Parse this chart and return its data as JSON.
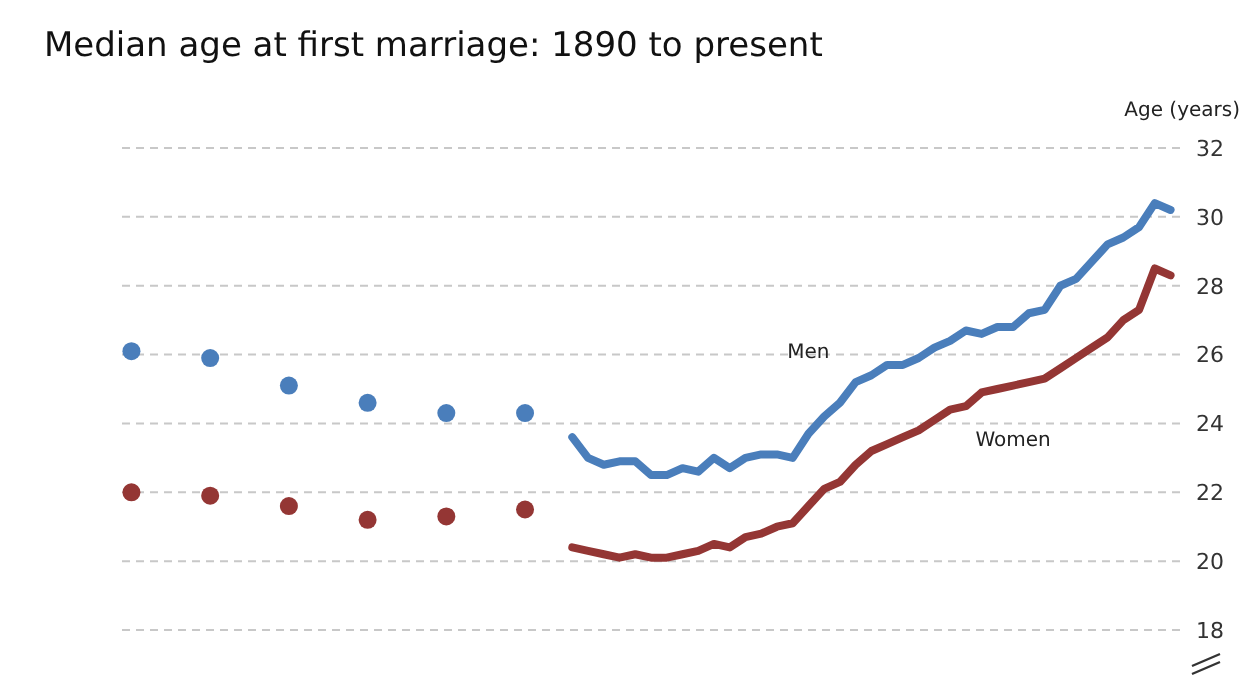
{
  "chart_data": {
    "type": "line",
    "title": "Median age at first marriage: 1890 to present",
    "ylabel": "Age (years)",
    "categories": [
      null,
      null,
      null,
      null,
      null,
      null,
      null,
      null,
      null,
      null,
      null,
      null,
      null,
      null,
      null,
      null,
      null,
      null,
      null,
      null,
      null,
      null,
      null,
      null,
      null,
      null,
      null,
      null,
      null,
      null,
      null,
      null,
      null,
      null,
      null,
      null,
      null,
      null,
      null,
      null,
      null,
      null,
      null,
      null,
      null,
      null,
      null,
      null,
      null,
      null,
      null,
      null,
      null,
      null,
      null,
      null,
      null,
      null,
      null,
      null,
      null,
      null,
      null,
      null,
      null,
      null,
      null
    ],
    "ylim": [
      18,
      32
    ],
    "yticks": [
      18,
      20,
      22,
      24,
      26,
      28,
      30,
      32
    ],
    "grid": "y",
    "line_style": "solid",
    "series": [
      {
        "type": "scatter",
        "color": "#4a7ebb",
        "values": [
          26.1,
          null,
          null,
          null,
          null,
          25.9,
          null,
          null,
          null,
          null,
          25.1,
          null,
          null,
          null,
          null,
          24.6,
          null,
          null,
          null,
          null,
          24.3,
          null,
          null,
          null,
          null,
          24.3,
          null,
          null,
          null,
          null,
          null,
          null,
          null,
          null,
          null,
          null,
          null,
          null,
          null,
          null,
          null,
          null,
          null,
          null,
          null,
          null,
          null,
          null,
          null,
          null,
          null,
          null,
          null,
          null,
          null,
          null,
          null,
          null,
          null,
          null,
          null,
          null,
          null,
          null,
          null,
          null,
          null
        ]
      },
      {
        "name": "Men",
        "color": "#4a7ebb",
        "values": [
          null,
          null,
          null,
          null,
          null,
          null,
          null,
          null,
          null,
          null,
          null,
          null,
          null,
          null,
          null,
          null,
          null,
          null,
          null,
          null,
          null,
          null,
          null,
          null,
          null,
          null,
          null,
          null,
          23.6,
          23.0,
          22.8,
          22.9,
          22.9,
          22.5,
          22.5,
          22.7,
          22.6,
          23.0,
          22.7,
          23.0,
          23.1,
          23.1,
          23.0,
          23.7,
          24.2,
          24.6,
          25.2,
          25.4,
          25.7,
          25.7,
          25.9,
          26.2,
          26.4,
          26.7,
          26.6,
          26.8,
          26.8,
          27.2,
          27.3,
          28.0,
          28.2,
          28.7,
          29.2,
          29.4,
          29.7,
          30.4,
          30.2
        ]
      },
      {
        "type": "scatter",
        "color": "#943634",
        "values": [
          22.0,
          null,
          null,
          null,
          null,
          21.9,
          null,
          null,
          null,
          null,
          21.6,
          null,
          null,
          null,
          null,
          21.2,
          null,
          null,
          null,
          null,
          21.3,
          null,
          null,
          null,
          null,
          21.5,
          null,
          null,
          null,
          null,
          null,
          null,
          null,
          null,
          null,
          null,
          null,
          null,
          null,
          null,
          null,
          null,
          null,
          null,
          null,
          null,
          null,
          null,
          null,
          null,
          null,
          null,
          null,
          null,
          null,
          null,
          null,
          null,
          null,
          null,
          null,
          null,
          null,
          null,
          null,
          null,
          null
        ]
      },
      {
        "name": "Women",
        "color": "#943634",
        "values": [
          null,
          null,
          null,
          null,
          null,
          null,
          null,
          null,
          null,
          null,
          null,
          null,
          null,
          null,
          null,
          null,
          null,
          null,
          null,
          null,
          null,
          null,
          null,
          null,
          null,
          null,
          null,
          null,
          20.4,
          20.3,
          20.2,
          20.1,
          20.2,
          20.1,
          20.1,
          20.2,
          20.3,
          20.5,
          20.4,
          20.7,
          20.8,
          21.0,
          21.1,
          21.6,
          22.1,
          22.3,
          22.8,
          23.2,
          23.4,
          23.6,
          23.8,
          24.1,
          24.4,
          24.5,
          24.9,
          25.0,
          25.1,
          25.2,
          25.3,
          25.6,
          25.9,
          26.2,
          26.5,
          27.0,
          27.3,
          28.5,
          28.3
        ]
      }
    ]
  }
}
